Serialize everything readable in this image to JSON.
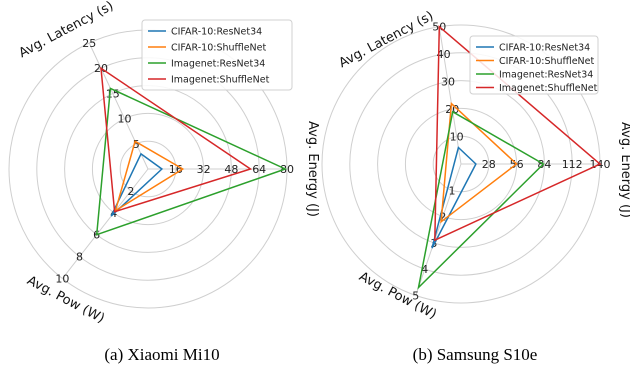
{
  "chart_data": [
    {
      "type": "radar",
      "caption": "(a) Xiaomi Mi10",
      "axes": [
        {
          "label": "Avg. Latency (s)",
          "max": 25,
          "ticks": [
            "5",
            "10",
            "15",
            "20",
            "25"
          ],
          "tick_values": [
            5,
            10,
            15,
            20,
            25
          ]
        },
        {
          "label": "Avg. Energy (J)",
          "max": 80,
          "ticks": [
            "16",
            "32",
            "48",
            "64",
            "80"
          ],
          "tick_values": [
            16,
            32,
            48,
            64,
            80
          ]
        },
        {
          "label": "Avg. Pow (W)",
          "max": 10,
          "ticks": [
            "2",
            "4",
            "6",
            "8",
            "10"
          ],
          "tick_values": [
            2,
            4,
            6,
            8,
            10
          ]
        }
      ],
      "series": [
        {
          "name": "CIFAR-10:ResNet34",
          "color": "#1f77b4",
          "values": [
            3,
            8,
            4.3
          ]
        },
        {
          "name": "CIFAR-10:ShuffleNet",
          "color": "#ff7f0e",
          "values": [
            5.5,
            20,
            3.8
          ]
        },
        {
          "name": "Imagenet:ResNet34",
          "color": "#2ca02c",
          "values": [
            16,
            79,
            6
          ]
        },
        {
          "name": "Imagenet:ShuffleNet",
          "color": "#d62728",
          "values": [
            20,
            59,
            3.9
          ]
        }
      ],
      "legend": "top-right"
    },
    {
      "type": "radar",
      "caption": "(b) Samsung S10e",
      "axes": [
        {
          "label": "Avg. Latency (s)",
          "max": 50,
          "ticks": [
            "10",
            "20",
            "30",
            "40",
            "50"
          ],
          "tick_values": [
            10,
            20,
            30,
            40,
            50
          ]
        },
        {
          "label": "Avg. Energy (J)",
          "max": 140,
          "ticks": [
            "28",
            "56",
            "84",
            "112",
            "140"
          ],
          "tick_values": [
            28,
            56,
            84,
            112,
            140
          ]
        },
        {
          "label": "Avg. Pow (W)",
          "max": 5,
          "ticks": [
            "1",
            "2",
            "3",
            "4",
            "5"
          ],
          "tick_values": [
            1,
            2,
            3,
            4,
            5
          ]
        }
      ],
      "series": [
        {
          "name": "CIFAR-10:ResNet34",
          "color": "#1f77b4",
          "values": [
            6,
            15,
            3.2
          ]
        },
        {
          "name": "CIFAR-10:ShuffleNet",
          "color": "#ff7f0e",
          "values": [
            22,
            56,
            2.2
          ]
        },
        {
          "name": "Imagenet:ResNet34",
          "color": "#2ca02c",
          "values": [
            19,
            83,
            4.7
          ]
        },
        {
          "name": "Imagenet:ShuffleNet",
          "color": "#d62728",
          "values": [
            50,
            140,
            2.9
          ]
        }
      ],
      "legend": "top-right"
    }
  ]
}
